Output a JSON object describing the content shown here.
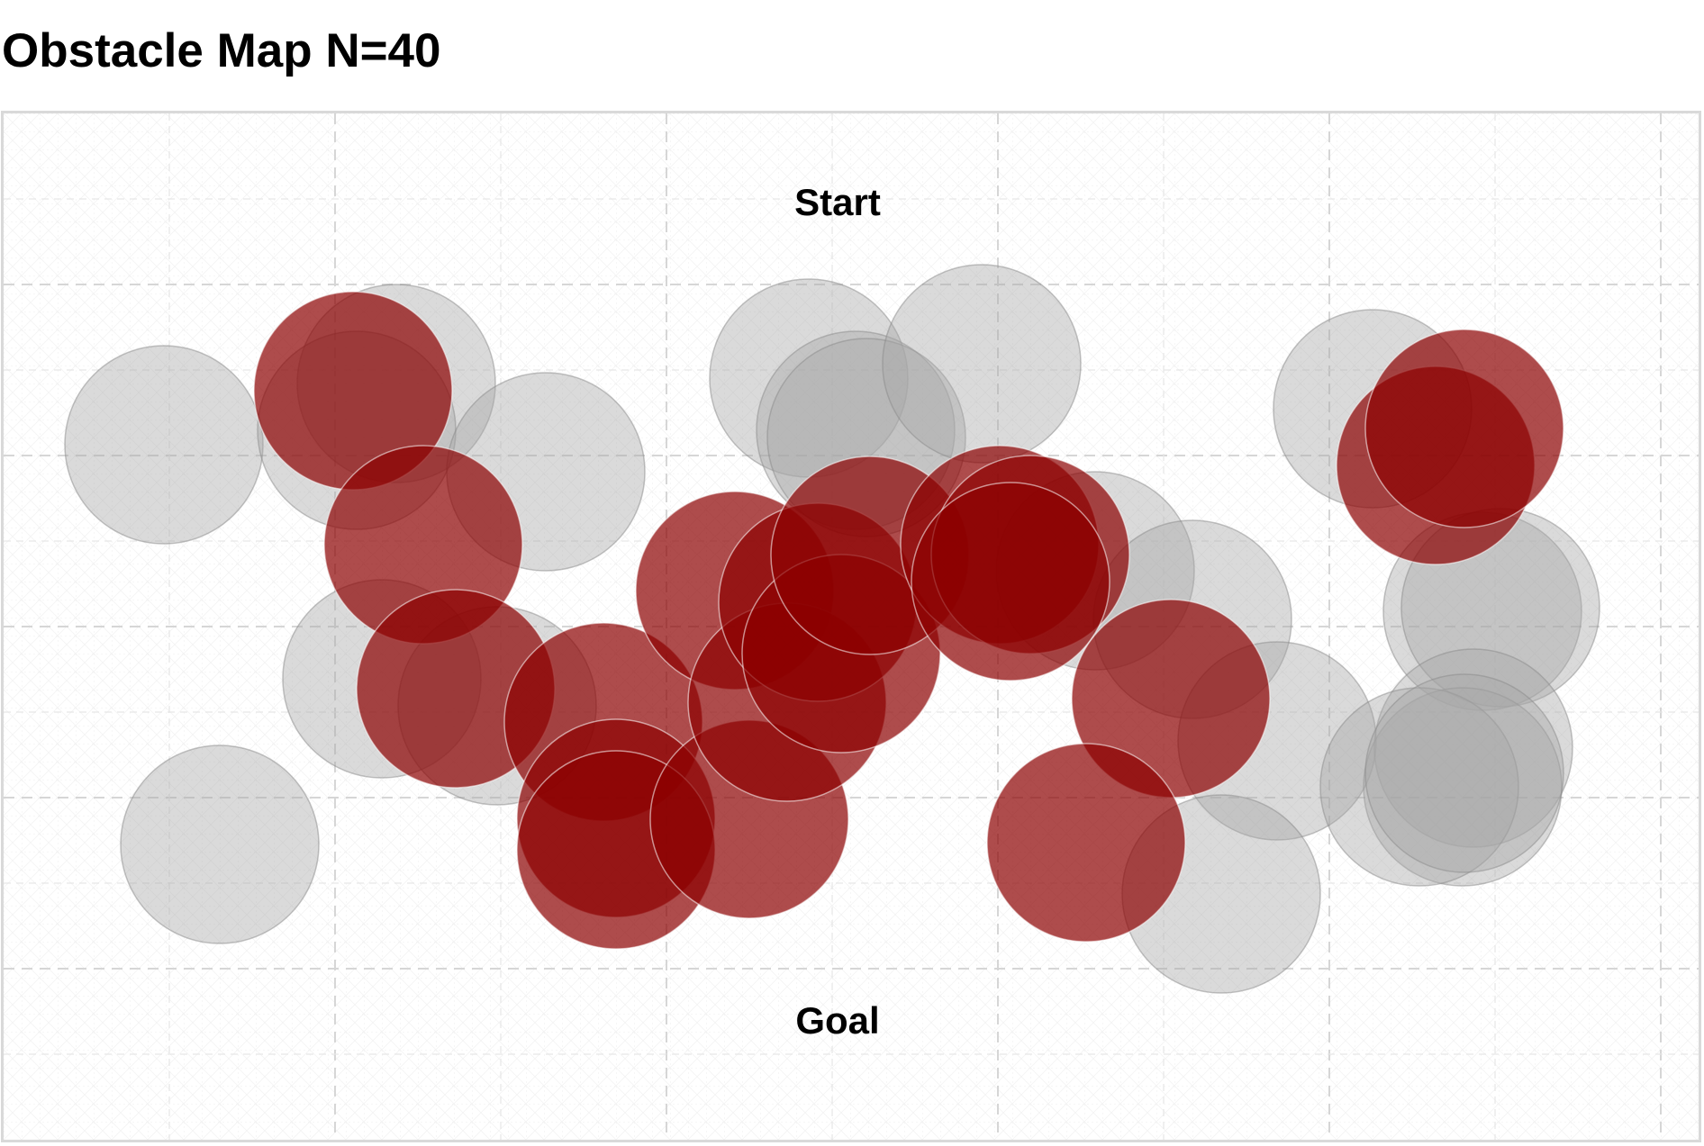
{
  "title": "Obstacle Map N=40",
  "map": {
    "start_label": "Start",
    "goal_label": "Goal"
  },
  "colors": {
    "obstacle_gray": "#a6a6a6",
    "obstacle_red": "#8b0000",
    "grid": "#d6d6d6",
    "frame_border": "#d9d9d9"
  },
  "legend": null
}
